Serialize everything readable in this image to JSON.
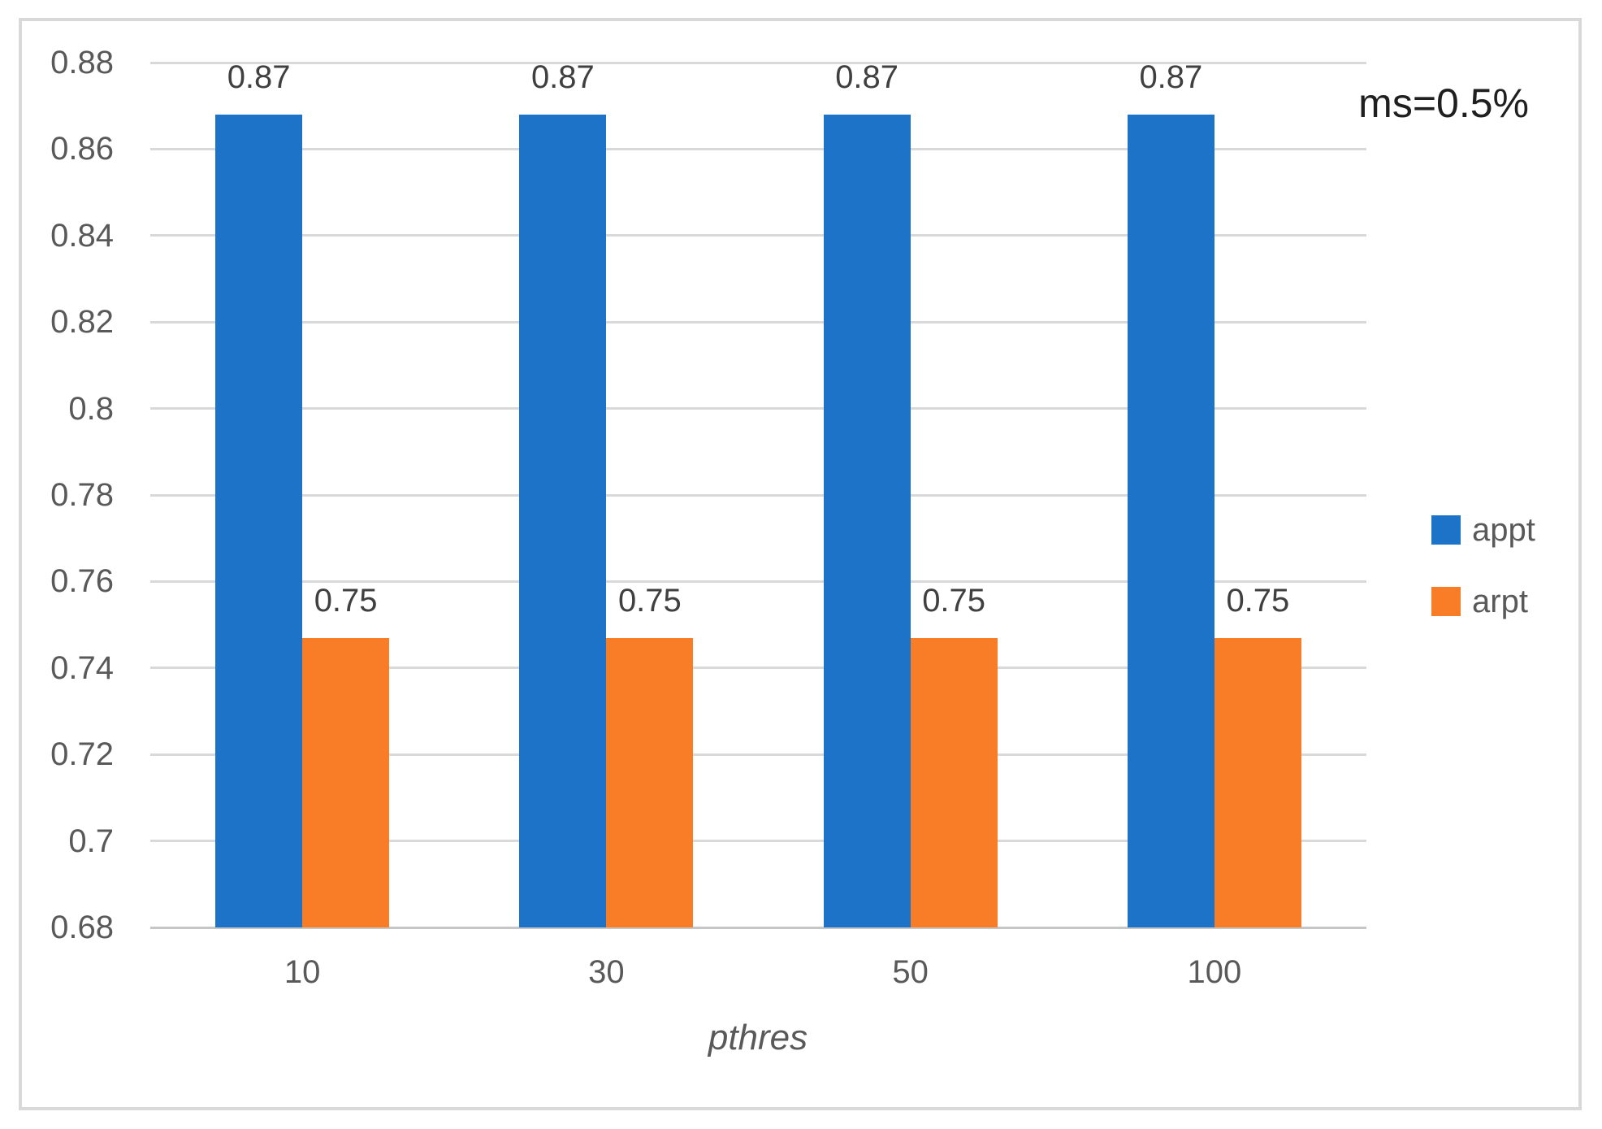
{
  "chart_data": {
    "type": "bar",
    "title": "",
    "xlabel": "pthres",
    "ylabel": "",
    "categories": [
      "10",
      "30",
      "50",
      "100"
    ],
    "series": [
      {
        "name": "appt",
        "color": "#1D73C7",
        "values": [
          0.868,
          0.868,
          0.868,
          0.868
        ],
        "labels": [
          "0.87",
          "0.87",
          "0.87",
          "0.87"
        ]
      },
      {
        "name": "arpt",
        "color": "#F97D26",
        "values": [
          0.747,
          0.747,
          0.747,
          0.747
        ],
        "labels": [
          "0.75",
          "0.75",
          "0.75",
          "0.75"
        ]
      }
    ],
    "ylim": [
      0.68,
      0.88
    ],
    "ytick_step": 0.02,
    "yticks": [
      "0.88",
      "0.86",
      "0.84",
      "0.82",
      "0.8",
      "0.78",
      "0.76",
      "0.74",
      "0.72",
      "0.7",
      "0.68"
    ],
    "annotation": "ms=0.5%",
    "legend": [
      "appt",
      "arpt"
    ],
    "legend_position": "right",
    "grid": true
  },
  "colors": {
    "grid": "#D9D9D9",
    "axis_line": "#C6C6C6",
    "frame_border": "#D9D9D9",
    "tick_text": "#595959",
    "data_label_text": "#404040",
    "annotation_text": "#1F1F1F",
    "background": "#FFFFFF"
  }
}
